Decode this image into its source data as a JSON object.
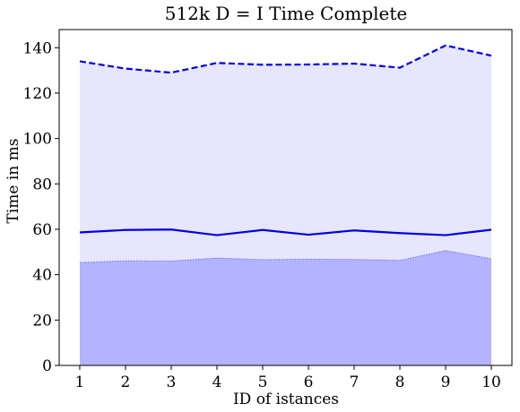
{
  "chart_data": {
    "type": "line",
    "title": "512k    D = I    Time    Complete",
    "xlabel": "ID of istances",
    "ylabel": "Time in ms",
    "x": [
      1,
      2,
      3,
      4,
      5,
      6,
      7,
      8,
      9,
      10
    ],
    "xlim": [
      0.55,
      10.45
    ],
    "ylim": [
      0,
      148
    ],
    "yticks": [
      0,
      20,
      40,
      60,
      80,
      100,
      120,
      140
    ],
    "grid": false,
    "colors": {
      "line": "#0000e6",
      "band_upper_fill": "#e6e6ff",
      "band_lower_fill": "#b3b3ff",
      "band_lower_edge": "#6b6bf0"
    },
    "series": [
      {
        "role": "upper-dashed",
        "values": [
          134,
          130.8,
          129,
          133.3,
          132.5,
          132.6,
          133,
          131.2,
          141,
          136.5
        ]
      },
      {
        "role": "mean-solid",
        "values": [
          58.6,
          59.7,
          59.9,
          57.4,
          59.7,
          57.6,
          59.5,
          58.3,
          57.4,
          59.8
        ]
      },
      {
        "role": "lower-dotted",
        "values": [
          45.3,
          46.1,
          46.0,
          47.3,
          46.6,
          46.8,
          46.7,
          46.3,
          50.6,
          47.0
        ]
      }
    ]
  }
}
